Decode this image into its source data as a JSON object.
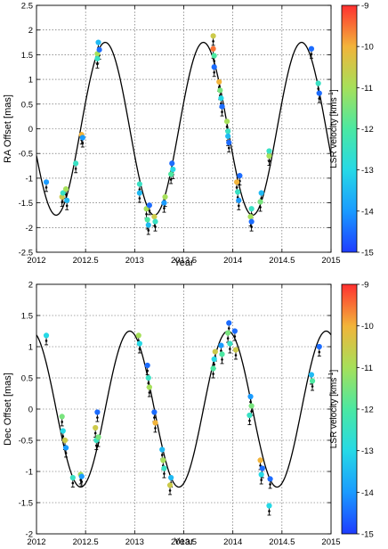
{
  "figure": {
    "colorbar_label": "LSR velocity [kms",
    "colorbar_label_sup": "-1",
    "colorbar_label_end": "]"
  },
  "colorscale": {
    "min": -15,
    "max": -9,
    "ticks": [
      "-9",
      "-10",
      "-11",
      "-12",
      "-13",
      "-14",
      "-15"
    ],
    "colors": [
      "#1e3cff",
      "#1a9bff",
      "#26d9e6",
      "#4be8a2",
      "#a6e05a",
      "#f2b43a",
      "#ff3030"
    ]
  },
  "chart_data": [
    {
      "type": "scatter",
      "title": "",
      "xlabel": "Year",
      "ylabel": "RA Offset [mas]",
      "xlim": [
        2012,
        2015
      ],
      "ylim": [
        -2.5,
        2.5
      ],
      "xticks": [
        2012,
        2012.5,
        2013,
        2013.5,
        2014,
        2014.5,
        2015
      ],
      "xtick_labels": [
        "2012",
        "2012.5",
        "2013",
        "2013.5",
        "2014",
        "2014.5",
        "2015"
      ],
      "yticks": [
        -2.5,
        -2,
        -1.5,
        -1,
        -0.5,
        0,
        0.5,
        1,
        1.5,
        2,
        2.5
      ],
      "ytick_labels": [
        "-2.5",
        "-2",
        "-1.5",
        "-1",
        "-0.5",
        "0",
        "0.5",
        "1",
        "1.5",
        "2",
        "2.5"
      ],
      "grid": true,
      "fit": {
        "mean": 0.0,
        "amp": 1.75,
        "period": 1.0,
        "peak": 2012.7
      },
      "points": [
        [
          2012.1,
          -1.08,
          -14
        ],
        [
          2012.26,
          -1.38,
          -10.5
        ],
        [
          2012.27,
          -1.3,
          -12.5
        ],
        [
          2012.3,
          -1.22,
          -11
        ],
        [
          2012.31,
          -1.45,
          -13.5
        ],
        [
          2012.4,
          -0.7,
          -12.5
        ],
        [
          2012.46,
          -0.12,
          -10
        ],
        [
          2012.47,
          -0.18,
          -14
        ],
        [
          2012.62,
          1.52,
          -11
        ],
        [
          2012.62,
          1.42,
          -12.5
        ],
        [
          2012.63,
          1.75,
          -13.5
        ],
        [
          2012.64,
          1.6,
          -14.5
        ],
        [
          2013.05,
          -1.12,
          -12.5
        ],
        [
          2013.05,
          -1.3,
          -13.5
        ],
        [
          2013.12,
          -1.62,
          -11
        ],
        [
          2013.13,
          -1.84,
          -12
        ],
        [
          2013.14,
          -1.95,
          -13.5
        ],
        [
          2013.15,
          -1.55,
          -14.5
        ],
        [
          2013.2,
          -1.78,
          -10.5
        ],
        [
          2013.21,
          -1.88,
          -12.5
        ],
        [
          2013.3,
          -1.5,
          -14
        ],
        [
          2013.31,
          -1.38,
          -11
        ],
        [
          2013.37,
          -0.92,
          -12
        ],
        [
          2013.38,
          -0.7,
          -14.5
        ],
        [
          2013.39,
          -0.82,
          -13
        ],
        [
          2013.8,
          1.88,
          -10.5
        ],
        [
          2013.8,
          1.62,
          -9.5
        ],
        [
          2013.81,
          1.48,
          -12
        ],
        [
          2013.81,
          1.25,
          -14.5
        ],
        [
          2013.86,
          0.95,
          -10
        ],
        [
          2013.87,
          0.78,
          -11.5
        ],
        [
          2013.88,
          0.62,
          -13
        ],
        [
          2013.89,
          0.45,
          -14.5
        ],
        [
          2013.94,
          0.15,
          -11
        ],
        [
          2013.95,
          -0.05,
          -12.5
        ],
        [
          2013.95,
          -0.15,
          -13.5
        ],
        [
          2013.96,
          -0.28,
          -14.5
        ],
        [
          2014.04,
          -1.08,
          -10
        ],
        [
          2014.05,
          -1.28,
          -12.5
        ],
        [
          2014.06,
          -1.45,
          -14
        ],
        [
          2014.07,
          -0.95,
          -14.5
        ],
        [
          2014.18,
          -1.78,
          -11
        ],
        [
          2014.19,
          -1.62,
          -12.5
        ],
        [
          2014.19,
          -1.88,
          -14.5
        ],
        [
          2014.28,
          -1.48,
          -11.5
        ],
        [
          2014.29,
          -1.3,
          -13.5
        ],
        [
          2014.37,
          -0.55,
          -11
        ],
        [
          2014.37,
          -0.45,
          -12.5
        ],
        [
          2014.8,
          1.62,
          -14.5
        ],
        [
          2014.87,
          0.92,
          -12.5
        ],
        [
          2014.88,
          0.72,
          -14.5
        ]
      ]
    },
    {
      "type": "scatter",
      "title": "",
      "xlabel": "Year",
      "ylabel": "Dec Offset [mas]",
      "xlim": [
        2012,
        2015
      ],
      "ylim": [
        -2,
        2
      ],
      "xticks": [
        2012,
        2012.5,
        2013,
        2013.5,
        2014,
        2014.5,
        2015
      ],
      "xtick_labels": [
        "2012",
        "2012.5",
        "2013",
        "2013.5",
        "2014",
        "2014.5",
        "2015"
      ],
      "yticks": [
        -2,
        -1.5,
        -1,
        -0.5,
        0,
        0.5,
        1,
        1.5,
        2
      ],
      "ytick_labels": [
        "-2",
        "-1.5",
        "-1",
        "-0.5",
        "0",
        "0.5",
        "1",
        "1.5",
        "2"
      ],
      "grid": true,
      "fit": {
        "mean": 0.0,
        "amp": 1.25,
        "period": 1.0,
        "peak": 2012.95
      },
      "points": [
        [
          2012.1,
          1.18,
          -13
        ],
        [
          2012.26,
          -0.12,
          -11.5
        ],
        [
          2012.27,
          -0.35,
          -13
        ],
        [
          2012.29,
          -0.5,
          -10.5
        ],
        [
          2012.3,
          -0.62,
          -14
        ],
        [
          2012.37,
          -1.1,
          -12.5
        ],
        [
          2012.45,
          -1.05,
          -11
        ],
        [
          2012.46,
          -1.08,
          -14
        ],
        [
          2012.6,
          -0.3,
          -10.5
        ],
        [
          2012.61,
          -0.5,
          -12.5
        ],
        [
          2012.62,
          -0.05,
          -14.5
        ],
        [
          2012.63,
          -0.45,
          -11.5
        ],
        [
          2013.04,
          1.18,
          -11
        ],
        [
          2013.05,
          1.05,
          -13
        ],
        [
          2013.13,
          0.7,
          -14.5
        ],
        [
          2013.14,
          0.5,
          -12.5
        ],
        [
          2013.15,
          0.35,
          -11
        ],
        [
          2013.2,
          -0.05,
          -14.5
        ],
        [
          2013.21,
          -0.22,
          -10
        ],
        [
          2013.28,
          -0.65,
          -13.5
        ],
        [
          2013.29,
          -0.82,
          -11
        ],
        [
          2013.3,
          -0.95,
          -12.5
        ],
        [
          2013.36,
          -1.22,
          -10.5
        ],
        [
          2013.37,
          -1.1,
          -13.5
        ],
        [
          2013.8,
          0.65,
          -12
        ],
        [
          2013.81,
          0.8,
          -13
        ],
        [
          2013.82,
          0.92,
          -10.5
        ],
        [
          2013.88,
          1.02,
          -14
        ],
        [
          2013.89,
          0.88,
          -12
        ],
        [
          2013.95,
          1.22,
          -11.5
        ],
        [
          2013.96,
          1.38,
          -14.5
        ],
        [
          2013.97,
          1.05,
          -12.5
        ],
        [
          2014.02,
          1.25,
          -14.5
        ],
        [
          2014.03,
          0.95,
          -10.5
        ],
        [
          2014.17,
          -0.1,
          -12.5
        ],
        [
          2014.18,
          0.2,
          -14
        ],
        [
          2014.19,
          0.05,
          -11.5
        ],
        [
          2014.28,
          -0.82,
          -10
        ],
        [
          2014.29,
          -1.05,
          -13
        ],
        [
          2014.3,
          -0.95,
          -14.5
        ],
        [
          2014.37,
          -1.55,
          -13
        ],
        [
          2014.38,
          -1.12,
          -14.5
        ],
        [
          2014.8,
          0.55,
          -13.5
        ],
        [
          2014.81,
          0.45,
          -12
        ],
        [
          2014.88,
          1.0,
          -14.5
        ]
      ]
    }
  ]
}
